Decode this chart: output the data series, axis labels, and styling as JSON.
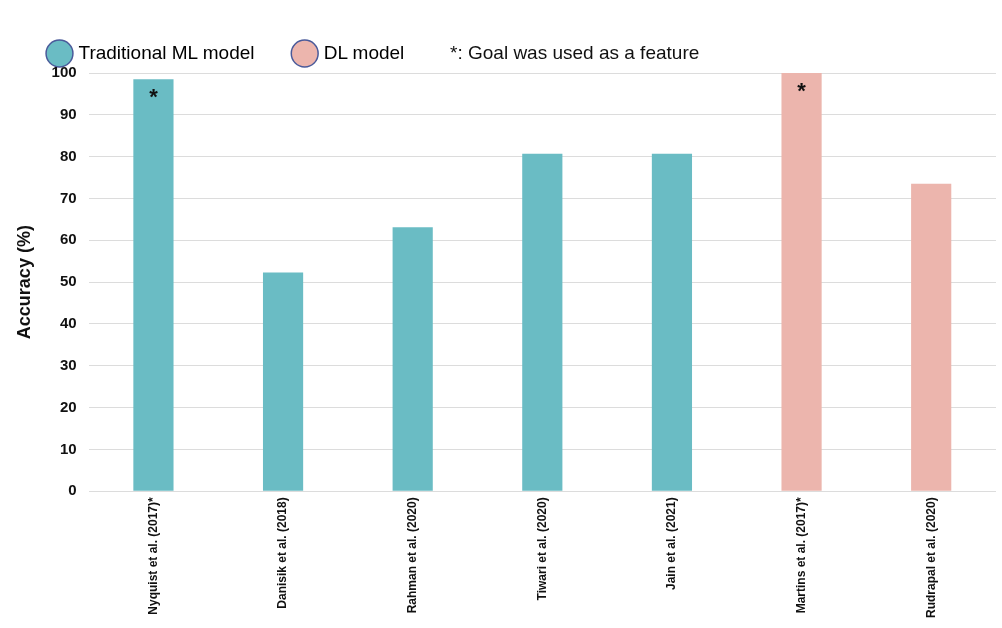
{
  "chart_data": {
    "type": "bar",
    "ylabel": "Accuracy (%)",
    "categories": [
      "Nyquist et al. (2017)*",
      "Danisik et al. (2018)",
      "Rahman et al. (2020)",
      "Tiwari et al. (2020)",
      "Jain et al. (2021)",
      "Martins et al. (2017)*",
      "Rudrapal et al. (2020)"
    ],
    "series": [
      {
        "name": "Traditional ML model",
        "color": "#6abcc4",
        "values": [
          98.5,
          52.3,
          63.1,
          80.7,
          80.7,
          null,
          null
        ]
      },
      {
        "name": "DL model",
        "color": "#ecb5ad",
        "values": [
          null,
          null,
          null,
          null,
          null,
          100,
          73.5
        ]
      }
    ],
    "ylim": [
      0,
      100
    ],
    "yticks": [
      0,
      10,
      20,
      30,
      40,
      50,
      60,
      70,
      80,
      90,
      100
    ],
    "grid": "y",
    "legend": "top",
    "annotations": [
      "*: Goal was used as a feature",
      {
        "text": "*",
        "x": "Nyquist et al. (2017)*",
        "y": 98.5
      },
      {
        "text": "*",
        "x": "Martins et al. (2017)*",
        "y": 100
      }
    ]
  }
}
